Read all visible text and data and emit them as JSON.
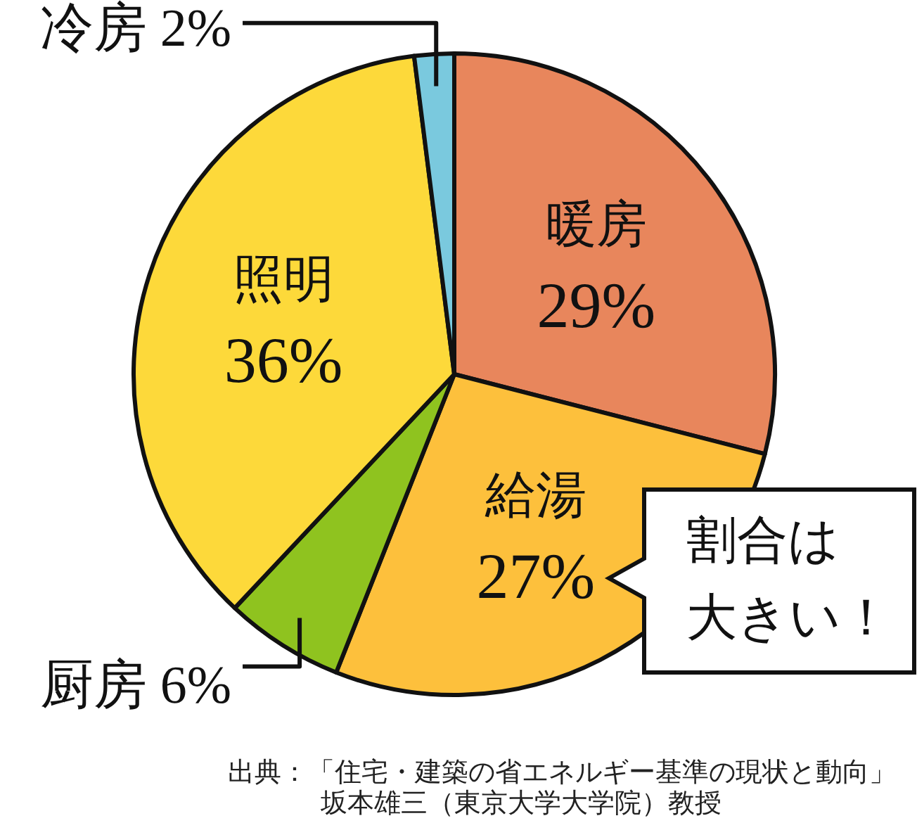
{
  "chart_data": {
    "type": "pie",
    "categories": [
      "暖房",
      "給湯",
      "厨房",
      "照明",
      "冷房"
    ],
    "values": [
      29,
      27,
      6,
      36,
      2
    ],
    "colors": [
      "#e8865c",
      "#fdc03c",
      "#8fc31f",
      "#fdd93a",
      "#7ac9de"
    ],
    "value_labels": [
      "29%",
      "27%",
      "6%",
      "36%",
      "2%"
    ],
    "annotations": [
      "割合は大きい！",
      "出典：「住宅・建築の省エネルギー基準の現状と動向」",
      "坂本雄三（東京大学大学院）教授"
    ]
  }
}
